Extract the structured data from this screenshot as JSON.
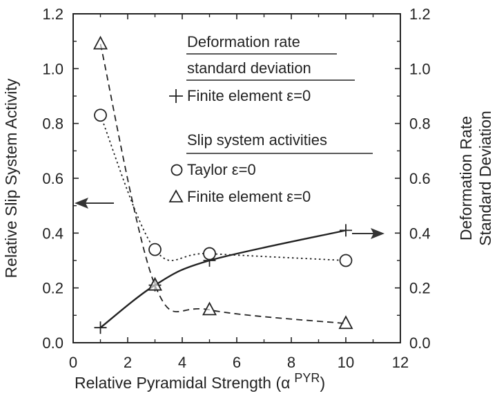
{
  "chart_data": {
    "type": "scatter",
    "xlabel": "Relative Pyramidal Strength (α PYR)",
    "xlabel_main": "Relative Pyramidal Strength (",
    "xlabel_alpha": "α",
    "xlabel_sup": "PYR",
    "xlabel_close": ")",
    "ylabel_left": "Relative Slip System Activity",
    "ylabel_right_line1": "Deformation Rate",
    "ylabel_right_line2": "Standard Deviation",
    "xlim": [
      0,
      12
    ],
    "ylim": [
      0.0,
      1.2
    ],
    "xticks": [
      "0",
      "2",
      "4",
      "6",
      "8",
      "10",
      "12"
    ],
    "yticks_left": [
      "0.0",
      "0.2",
      "0.4",
      "0.6",
      "0.8",
      "1.0",
      "1.2"
    ],
    "yticks_right": [
      "0.0",
      "0.2",
      "0.4",
      "0.6",
      "0.8",
      "1.0",
      "1.2"
    ],
    "legend": {
      "group1_title_line1": "Deformation rate",
      "group1_title_line2": "standard deviation",
      "group2_title": "Slip system activities"
    },
    "series": [
      {
        "name": "Finite element ε=0",
        "group": "deformation",
        "marker": "plus",
        "line": "solid",
        "x": [
          1,
          3,
          5,
          10
        ],
        "y": [
          0.055,
          0.21,
          0.3,
          0.41
        ]
      },
      {
        "name": "Taylor ε=0",
        "group": "slip",
        "marker": "circle",
        "line": "dotted",
        "x": [
          1,
          3,
          5,
          10
        ],
        "y": [
          0.83,
          0.34,
          0.325,
          0.3
        ]
      },
      {
        "name": "Finite element ε=0",
        "group": "slip",
        "marker": "triangle",
        "line": "dashed",
        "x": [
          1,
          3,
          5,
          10
        ],
        "y": [
          1.09,
          0.21,
          0.12,
          0.07
        ]
      }
    ],
    "annotations": [
      {
        "type": "arrow",
        "direction": "left",
        "at_y": 0.57,
        "meaning": "left axis"
      },
      {
        "type": "arrow",
        "direction": "right",
        "at_y": 0.4,
        "meaning": "right axis"
      }
    ]
  }
}
